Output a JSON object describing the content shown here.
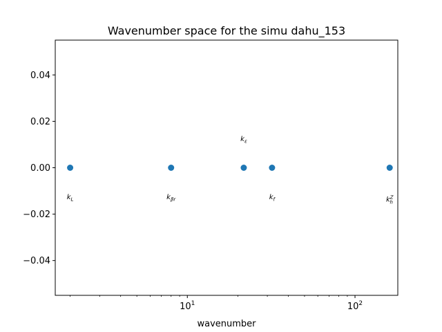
{
  "chart_data": {
    "type": "scatter",
    "title": "Wavenumber space for the simu dahu_153",
    "xlabel": "wavenumber",
    "ylabel": "",
    "xscale": "log",
    "xlim": [
      1.63,
      180
    ],
    "ylim": [
      -0.055,
      0.055
    ],
    "xticks": [
      {
        "value": 10,
        "label": "10",
        "exp": "1"
      },
      {
        "value": 100,
        "label": "10",
        "exp": "2"
      }
    ],
    "yticks": [
      {
        "value": 0.04,
        "label": "0.04"
      },
      {
        "value": 0.02,
        "label": "0.02"
      },
      {
        "value": 0.0,
        "label": "0.00"
      },
      {
        "value": -0.02,
        "label": "−0.02"
      },
      {
        "value": -0.04,
        "label": "−0.04"
      }
    ],
    "marker_color": "#1f77b4",
    "points": [
      {
        "x": 2.0,
        "y": 0,
        "label_base": "k",
        "label_sub": "L",
        "label_sup": "",
        "label_y": -0.0125
      },
      {
        "x": 8.0,
        "y": 0,
        "label_base": "k",
        "label_sub": "βr",
        "label_sup": "",
        "label_y": -0.0125
      },
      {
        "x": 21.7,
        "y": 0,
        "label_base": "k",
        "label_sub": "ε",
        "label_sup": "",
        "label_y": 0.0125
      },
      {
        "x": 32.0,
        "y": 0,
        "label_base": "k",
        "label_sub": "f",
        "label_sup": "",
        "label_y": -0.0125
      },
      {
        "x": 161.0,
        "y": 0,
        "label_base": "k",
        "label_sub": "h",
        "label_sup": "Z",
        "label_y": -0.0135
      }
    ]
  }
}
